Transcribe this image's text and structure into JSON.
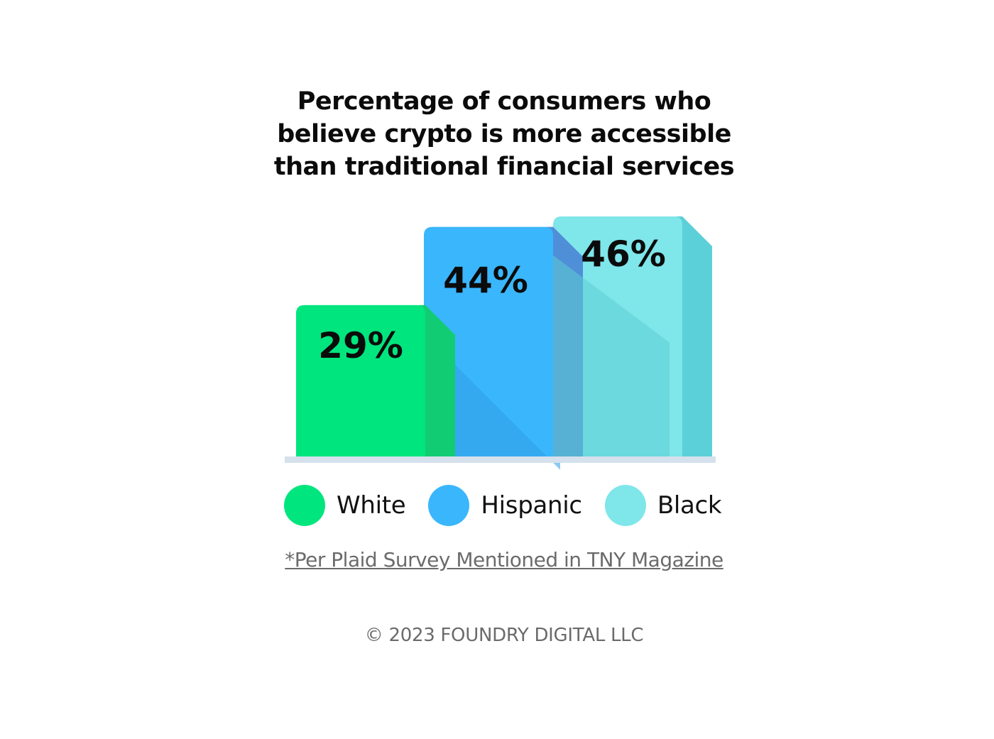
{
  "chart_data": {
    "type": "bar",
    "title_lines": [
      "Percentage of consumers who",
      "believe crypto is more accessible",
      "than traditional financial services"
    ],
    "categories": [
      "White",
      "Hispanic",
      "Black"
    ],
    "values": [
      29,
      44,
      46
    ],
    "value_labels": [
      "29%",
      "44%",
      "46%"
    ],
    "colors": {
      "White": "#00e57e",
      "Hispanic": "#3ab6fc",
      "Black": "#7fe6ea"
    },
    "side_colors": {
      "White": "#12cc74",
      "Hispanic": "#4f8fd8",
      "Black": "#5cd0d8"
    },
    "baseline_color": "#d5e1ec",
    "legend_placement": "bottom",
    "ylim": [
      0,
      50
    ],
    "grid": false
  },
  "legend": {
    "items": [
      {
        "label": "White",
        "color": "#00e57e"
      },
      {
        "label": "Hispanic",
        "color": "#3ab6fc"
      },
      {
        "label": "Black",
        "color": "#7fe6ea"
      }
    ]
  },
  "source_note": "*Per Plaid Survey Mentioned in TNY Magazine",
  "copyright": "© 2023 FOUNDRY DIGITAL LLC"
}
